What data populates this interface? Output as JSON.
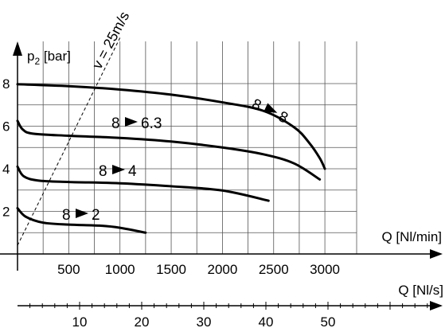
{
  "chart_data": {
    "type": "line",
    "y_axis": {
      "label_main": "p",
      "label_sub": "2",
      "label_unit": " [bar]",
      "ticks": [
        2,
        4,
        6,
        8
      ],
      "ylim": [
        0,
        9
      ]
    },
    "x_axis": {
      "label": "Q [Nl/min]",
      "ticks": [
        500,
        1000,
        1500,
        2000,
        2500,
        3000
      ],
      "xlim": [
        0,
        3000
      ],
      "grid_step": 250
    },
    "x2_axis": {
      "label": "Q [Nl/s]",
      "ticks": [
        10,
        20,
        30,
        40,
        50
      ],
      "minor_step": 2
    },
    "velocity_line": {
      "label": "v = 25m/s",
      "points": [
        [
          0,
          0.4
        ],
        [
          500,
          5.2
        ],
        [
          1000,
          10
        ]
      ]
    },
    "series": [
      {
        "name": "8 ► 8",
        "label_main": "8",
        "label_end": "8",
        "points": [
          [
            0,
            7.97
          ],
          [
            500,
            7.88
          ],
          [
            1000,
            7.72
          ],
          [
            1500,
            7.48
          ],
          [
            2000,
            7.12
          ],
          [
            2400,
            6.72
          ],
          [
            2700,
            5.95
          ],
          [
            2850,
            5.2
          ],
          [
            2950,
            4.5
          ],
          [
            3000,
            4.0
          ]
        ]
      },
      {
        "name": "8 ► 6.3",
        "label_main": "8",
        "label_end": "6.3",
        "points": [
          [
            0,
            6.25
          ],
          [
            50,
            5.85
          ],
          [
            150,
            5.65
          ],
          [
            500,
            5.55
          ],
          [
            1000,
            5.45
          ],
          [
            1500,
            5.28
          ],
          [
            2000,
            5.0
          ],
          [
            2400,
            4.68
          ],
          [
            2700,
            4.25
          ],
          [
            2950,
            3.5
          ]
        ]
      },
      {
        "name": "8 ► 4",
        "label_main": "8",
        "label_end": "4",
        "points": [
          [
            0,
            4.1
          ],
          [
            60,
            3.65
          ],
          [
            200,
            3.45
          ],
          [
            500,
            3.38
          ],
          [
            1000,
            3.32
          ],
          [
            1500,
            3.18
          ],
          [
            2000,
            2.98
          ],
          [
            2450,
            2.5
          ]
        ]
      },
      {
        "name": "8 ► 2",
        "label_main": "8",
        "label_end": "2",
        "points": [
          [
            0,
            2.15
          ],
          [
            80,
            1.75
          ],
          [
            250,
            1.47
          ],
          [
            500,
            1.38
          ],
          [
            800,
            1.33
          ],
          [
            1000,
            1.23
          ],
          [
            1250,
            1.0
          ]
        ]
      }
    ]
  }
}
